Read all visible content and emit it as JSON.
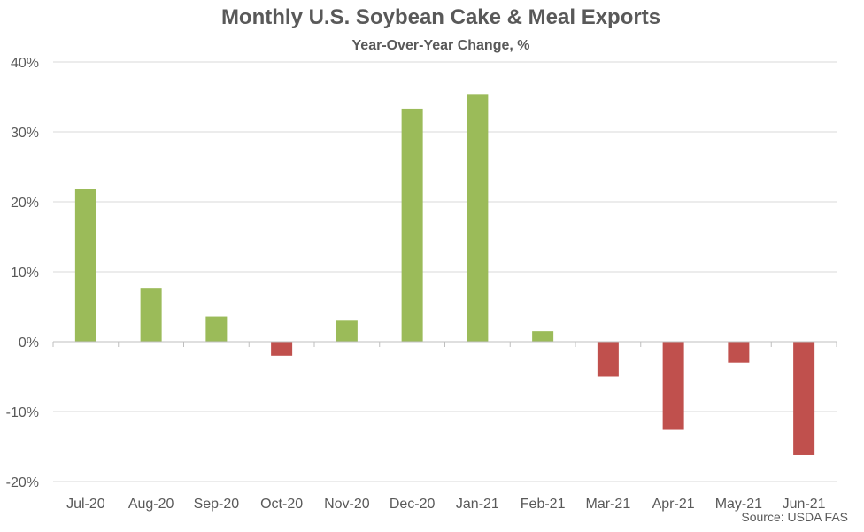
{
  "chart_data": {
    "type": "bar",
    "title": "Monthly U.S. Soybean Cake & Meal Exports",
    "subtitle": "Year-Over-Year Change, %",
    "source": "Source: USDA FAS",
    "categories": [
      "Jul-20",
      "Aug-20",
      "Sep-20",
      "Oct-20",
      "Nov-20",
      "Dec-20",
      "Jan-21",
      "Feb-21",
      "Mar-21",
      "Apr-21",
      "May-21",
      "Jun-21"
    ],
    "values": [
      21.8,
      7.7,
      3.6,
      -2.0,
      3.0,
      33.3,
      35.4,
      1.5,
      -5.0,
      -12.6,
      -3.0,
      -16.2
    ],
    "ylim": [
      -20,
      40
    ],
    "yticks": [
      -20,
      -10,
      0,
      10,
      20,
      30,
      40
    ],
    "ytick_labels": [
      "-20%",
      "-10%",
      "0%",
      "10%",
      "20%",
      "30%",
      "40%"
    ],
    "xlabel": "",
    "ylabel": "",
    "grid": true,
    "colors": {
      "positive": "#9BBB59",
      "negative": "#C0504D",
      "grid": "#D9D9D9",
      "axis": "#BFBFBF"
    }
  }
}
